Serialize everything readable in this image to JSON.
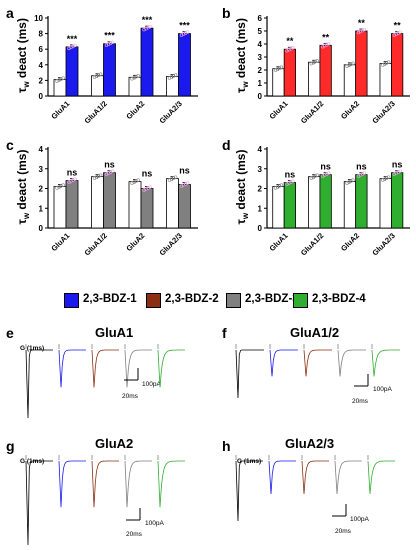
{
  "panel_letters": {
    "a": "a",
    "b": "b",
    "c": "c",
    "d": "d",
    "e": "e",
    "f": "f",
    "g": "g",
    "h": "h"
  },
  "colors": {
    "control": "#ffffff",
    "bdz1": "#1a1aee",
    "bdz2": "#8b2e12",
    "bdz3": "#808080",
    "bdz4": "#2fae2f",
    "bar_panel_b": "#ff2a2a"
  },
  "legend": [
    {
      "label": "2,3-BDZ-1",
      "color": "#1a1aee"
    },
    {
      "label": "2,3-BDZ-2",
      "color": "#8b2e12"
    },
    {
      "label": "2,3-BDZ-3",
      "color": "#808080"
    },
    {
      "label": "2,3-BDZ-4",
      "color": "#2fae2f"
    }
  ],
  "chart_data": [
    {
      "panel": "a",
      "type": "bar",
      "ylabel_main": "τ",
      "ylabel_sub": "w",
      "ylabel_rest": " deact (ms)",
      "ylim": [
        0,
        10
      ],
      "yticks": [
        0,
        2,
        4,
        6,
        8,
        10
      ],
      "categories": [
        "GluA1",
        "GluA1/2",
        "GluA2",
        "GluA2/3"
      ],
      "series": [
        {
          "values": [
            2.1,
            2.6,
            2.4,
            2.5
          ],
          "color": "#ffffff"
        },
        {
          "values": [
            6.3,
            6.7,
            8.7,
            8.0
          ],
          "color": "#1a1aee"
        }
      ],
      "annotations": [
        "***",
        "***",
        "***",
        "***"
      ]
    },
    {
      "panel": "b",
      "type": "bar",
      "ylabel_main": "τ",
      "ylabel_sub": "w",
      "ylabel_rest": " deact (ms)",
      "ylim": [
        0,
        6
      ],
      "yticks": [
        0,
        1,
        2,
        3,
        4,
        5,
        6
      ],
      "categories": [
        "GluA1",
        "GluA1/2",
        "GluA2",
        "GluA2/3"
      ],
      "series": [
        {
          "values": [
            2.1,
            2.6,
            2.4,
            2.5
          ],
          "color": "#ffffff"
        },
        {
          "values": [
            3.6,
            3.9,
            5.0,
            4.8
          ],
          "color": "#ff2a2a"
        }
      ],
      "annotations": [
        "**",
        "**",
        "**",
        "**"
      ]
    },
    {
      "panel": "c",
      "type": "bar",
      "ylabel_main": "τ",
      "ylabel_sub": "w",
      "ylabel_rest": " deact (ms)",
      "ylim": [
        0,
        4
      ],
      "yticks": [
        0,
        1,
        2,
        3,
        4
      ],
      "categories": [
        "GluA1",
        "GluA1/2",
        "GluA2",
        "GluA2/3"
      ],
      "series": [
        {
          "values": [
            2.1,
            2.6,
            2.35,
            2.5
          ],
          "color": "#ffffff"
        },
        {
          "values": [
            2.4,
            2.8,
            2.0,
            2.2
          ],
          "color": "#808080"
        }
      ],
      "annotations": [
        "ns",
        "ns",
        "ns",
        "ns"
      ]
    },
    {
      "panel": "d",
      "type": "bar",
      "ylabel_main": "τ",
      "ylabel_sub": "w",
      "ylabel_rest": " deact (ms)",
      "ylim": [
        0,
        4
      ],
      "yticks": [
        0,
        1,
        2,
        3,
        4
      ],
      "categories": [
        "GluA1",
        "GluA1/2",
        "GluA2",
        "GluA2/3"
      ],
      "series": [
        {
          "values": [
            2.1,
            2.6,
            2.35,
            2.5
          ],
          "color": "#ffffff"
        },
        {
          "values": [
            2.3,
            2.7,
            2.7,
            2.8
          ],
          "color": "#2fae2f"
        }
      ],
      "annotations": [
        "ns",
        "ns",
        "ns",
        "ns"
      ]
    }
  ],
  "traces": [
    {
      "panel": "e",
      "title": "GluA1",
      "g_label": "G (1ms)",
      "scale_y": "100pA",
      "scale_x": "20ms"
    },
    {
      "panel": "f",
      "title": "GluA1/2",
      "g_label": "",
      "scale_y": "100pA",
      "scale_x": "20ms"
    },
    {
      "panel": "g",
      "title": "GluA2",
      "g_label": "G (1ms)",
      "scale_y": "100pA",
      "scale_x": "20ms"
    },
    {
      "panel": "h",
      "title": "GluA2/3",
      "g_label": "G (1ms)",
      "scale_y": "100pA",
      "scale_x": "20ms"
    }
  ]
}
